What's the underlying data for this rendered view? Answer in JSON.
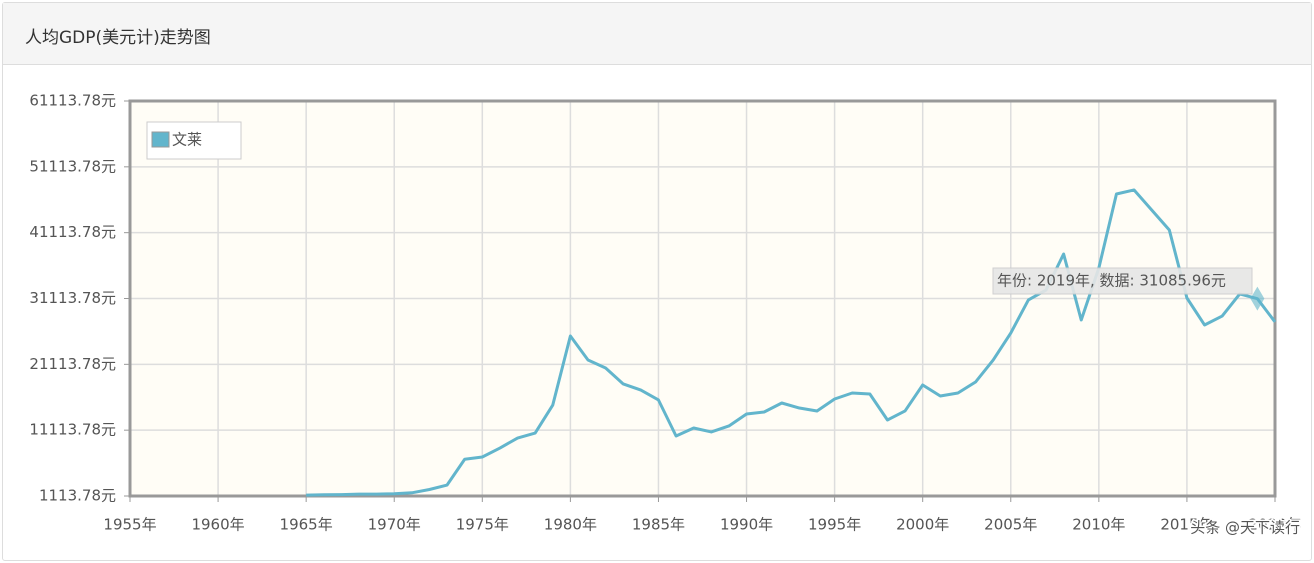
{
  "panel_title": "人均GDP(美元计)走势图",
  "watermark": "头条 @天下读行",
  "chart_data": {
    "type": "line",
    "x": [
      1965,
      1966,
      1967,
      1968,
      1969,
      1970,
      1971,
      1972,
      1973,
      1974,
      1975,
      1976,
      1977,
      1978,
      1979,
      1980,
      1981,
      1982,
      1983,
      1984,
      1985,
      1986,
      1987,
      1988,
      1989,
      1990,
      1991,
      1992,
      1993,
      1994,
      1995,
      1996,
      1997,
      1998,
      1999,
      2000,
      2001,
      2002,
      2003,
      2004,
      2005,
      2006,
      2007,
      2008,
      2009,
      2010,
      2011,
      2012,
      2013,
      2014,
      2015,
      2016,
      2017,
      2018,
      2019,
      2020
    ],
    "series": [
      {
        "name": "文莱",
        "color": "#62b5cc",
        "values": [
          1250,
          1300,
          1330,
          1400,
          1400,
          1450,
          1600,
          2100,
          2780,
          6700,
          7040,
          8400,
          9920,
          10680,
          14930,
          25420,
          21770,
          20560,
          18130,
          17210,
          15700,
          10230,
          11440,
          10840,
          11750,
          13570,
          13870,
          15240,
          14480,
          14030,
          15850,
          16760,
          16610,
          12660,
          14030,
          17980,
          16300,
          16760,
          18430,
          21770,
          25870,
          30890,
          32400,
          37870,
          27850,
          35750,
          46990,
          47600,
          44560,
          41520,
          31190,
          27090,
          28450,
          31800,
          31085.96,
          27550
        ]
      }
    ],
    "xlim": [
      1955,
      2020
    ],
    "xticks": [
      {
        "value": 1955,
        "label": "1955年"
      },
      {
        "value": 1960,
        "label": "1960年"
      },
      {
        "value": 1965,
        "label": "1965年"
      },
      {
        "value": 1970,
        "label": "1970年"
      },
      {
        "value": 1975,
        "label": "1975年"
      },
      {
        "value": 1980,
        "label": "1980年"
      },
      {
        "value": 1985,
        "label": "1985年"
      },
      {
        "value": 1990,
        "label": "1990年"
      },
      {
        "value": 1995,
        "label": "1995年"
      },
      {
        "value": 2000,
        "label": "2000年"
      },
      {
        "value": 2005,
        "label": "2005年"
      },
      {
        "value": 2010,
        "label": "2010年"
      },
      {
        "value": 2015,
        "label": "2015年"
      },
      {
        "value": 2020,
        "label": "2020年"
      }
    ],
    "ylim": [
      1113.78,
      61113.78
    ],
    "yticks": [
      {
        "value": 1113.78,
        "label": "1113.78元"
      },
      {
        "value": 11113.78,
        "label": "11113.78元"
      },
      {
        "value": 21113.78,
        "label": "21113.78元"
      },
      {
        "value": 31113.78,
        "label": "31113.78元"
      },
      {
        "value": 41113.78,
        "label": "41113.78元"
      },
      {
        "value": 51113.78,
        "label": "51113.78元"
      },
      {
        "value": 61113.78,
        "label": "61113.78元"
      }
    ],
    "grid": true,
    "legend": "top-left",
    "tooltip": {
      "label": "年份: 2019年, 数据: 31085.96元",
      "index": 54
    }
  }
}
